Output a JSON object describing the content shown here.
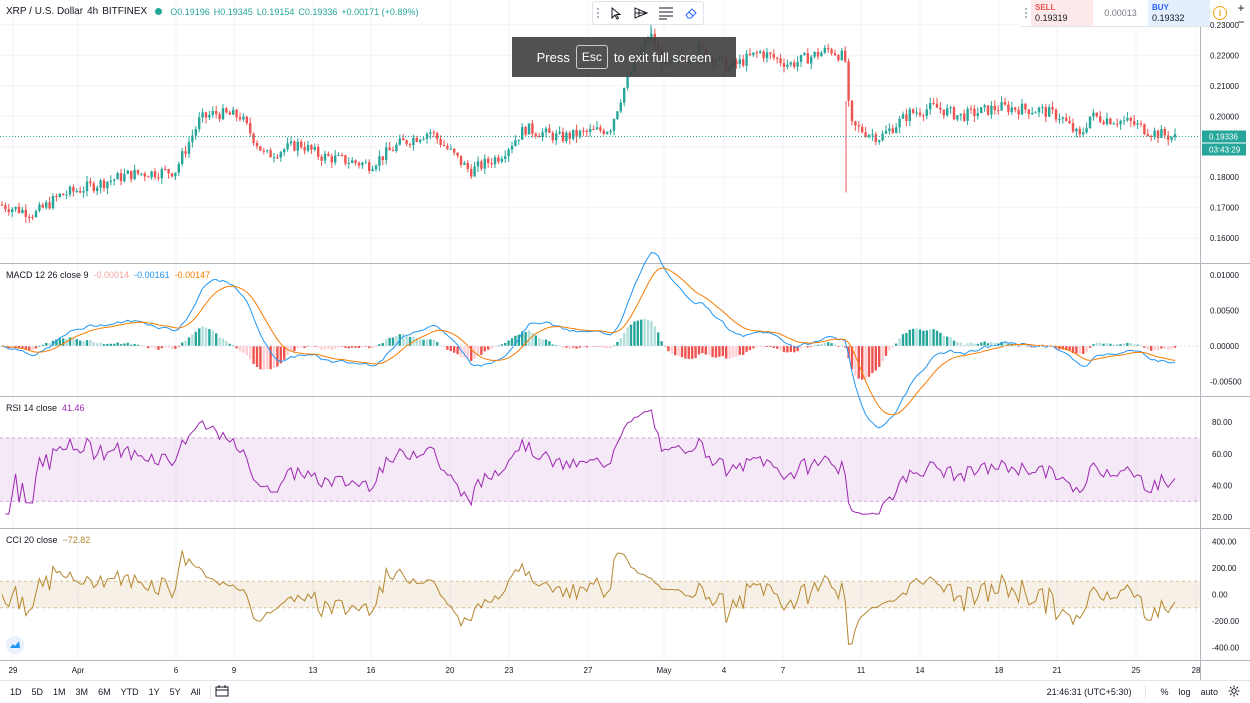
{
  "header": {
    "symbol": "XRP / U.S. Dollar",
    "interval": "4h",
    "exchange": "BITFINEX",
    "ohlc": {
      "open": "O0.19196",
      "high": "H0.19345",
      "low": "L0.19154",
      "close": "C0.19336",
      "change": "+0.00171 (+0.89%)"
    }
  },
  "trade": {
    "sell_label": "SELL",
    "sell_price": "0.19319",
    "spread": "0.00013",
    "buy_label": "BUY",
    "buy_price": "0.19332"
  },
  "zoom": {
    "plus": "+",
    "minus": "−"
  },
  "banner": {
    "before": "Press",
    "key": "Esc",
    "after": "to exit full screen"
  },
  "toolbar_icons": [
    "cursor-icon",
    "arrow-tool-icon",
    "text-tool-icon",
    "eraser-icon"
  ],
  "price_axis": {
    "labels": [
      "0.23000",
      "0.22000",
      "0.21000",
      "0.20000",
      "0.18000",
      "0.17000",
      "0.16000"
    ],
    "current_price": "0.19336",
    "countdown": "03:43:29"
  },
  "macd": {
    "label": "MACD 12 26 close 9",
    "hist": "-0.00014",
    "macd": "-0.00161",
    "signal": "-0.00147",
    "axis": [
      "0.01000",
      "0.00500",
      "0.00000",
      "-0.00500"
    ]
  },
  "rsi": {
    "label": "RSI 14 close",
    "value": "41.46",
    "axis": [
      "80.00",
      "60.00",
      "40.00",
      "20.00"
    ]
  },
  "cci": {
    "label": "CCI 20 close",
    "value": "−72.82",
    "axis": [
      "400.00",
      "200.00",
      "0.00",
      "-200.00",
      "-400.00"
    ]
  },
  "time_axis": [
    "29",
    "Apr",
    "6",
    "9",
    "13",
    "16",
    "20",
    "23",
    "27",
    "May",
    "4",
    "7",
    "11",
    "14",
    "18",
    "21",
    "25",
    "28"
  ],
  "bottom": {
    "ranges": [
      "1D",
      "5D",
      "1M",
      "3M",
      "6M",
      "YTD",
      "1Y",
      "5Y",
      "All"
    ],
    "time": "21:46:31 (UTC+5:30)",
    "percent": "%",
    "log": "log",
    "auto": "auto"
  },
  "colors": {
    "up": "#26a69a",
    "down": "#ef5350",
    "macd": "#2196f3",
    "signal": "#f57c00",
    "rsi": "#9c27b0",
    "cci": "#b5862e"
  }
}
